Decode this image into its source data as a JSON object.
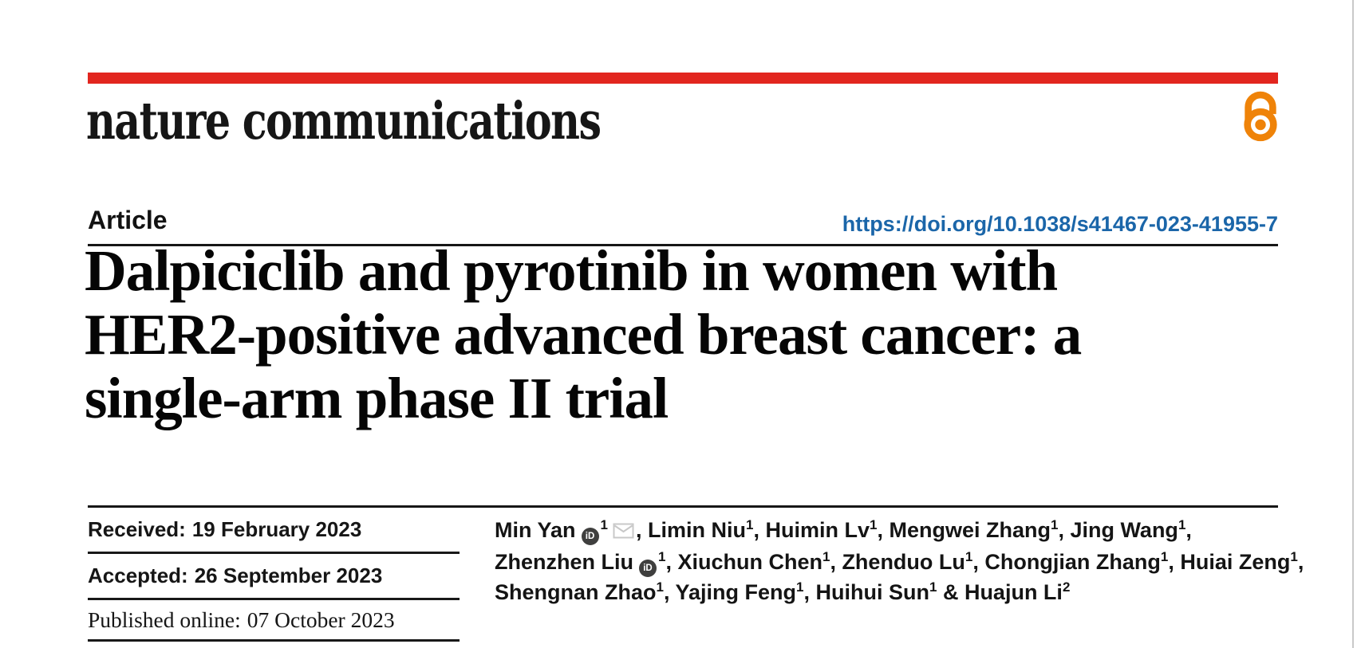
{
  "page": {
    "edge_color": "#c9c9c9"
  },
  "masthead": {
    "journal_name": "nature communications",
    "brand_bar_color": "#e2261f",
    "open_access_icon_color": "#ef8309"
  },
  "article_header": {
    "kicker": "Article",
    "doi_link": "https://doi.org/10.1038/s41467-023-41955-7",
    "doi_color": "#1b66a9",
    "title_lines": [
      "Dalpiciclib and pyrotinib in women with",
      "HER2-positive advanced breast cancer: a",
      "single-arm phase II trial"
    ]
  },
  "timeline": {
    "rows": [
      {
        "label": "Received:",
        "value": "19 February 2023",
        "serif": false
      },
      {
        "label": "Accepted:",
        "value": "26 September 2023",
        "serif": false
      },
      {
        "label": "Published online:",
        "value": "07 October 2023",
        "serif": true
      }
    ]
  },
  "authors": {
    "orcid_glyph": "iD",
    "lines": [
      [
        {
          "t": "text",
          "v": "Min Yan"
        },
        {
          "t": "orcid"
        },
        {
          "t": "sup",
          "v": "1"
        },
        {
          "t": "mail"
        },
        {
          "t": "text",
          "v": ", Limin Niu"
        },
        {
          "t": "sup",
          "v": "1"
        },
        {
          "t": "text",
          "v": ", Huimin Lv"
        },
        {
          "t": "sup",
          "v": "1"
        },
        {
          "t": "text",
          "v": ", Mengwei Zhang"
        },
        {
          "t": "sup",
          "v": "1"
        },
        {
          "t": "text",
          "v": ", Jing Wang"
        },
        {
          "t": "sup",
          "v": "1"
        },
        {
          "t": "text",
          "v": ","
        }
      ],
      [
        {
          "t": "text",
          "v": "Zhenzhen Liu"
        },
        {
          "t": "orcid"
        },
        {
          "t": "sup",
          "v": "1"
        },
        {
          "t": "text",
          "v": ", Xiuchun Chen"
        },
        {
          "t": "sup",
          "v": "1"
        },
        {
          "t": "text",
          "v": ", Zhenduo Lu"
        },
        {
          "t": "sup",
          "v": "1"
        },
        {
          "t": "text",
          "v": ", Chongjian Zhang"
        },
        {
          "t": "sup",
          "v": "1"
        },
        {
          "t": "text",
          "v": ", Huiai Zeng"
        },
        {
          "t": "sup",
          "v": "1"
        },
        {
          "t": "text",
          "v": ","
        }
      ],
      [
        {
          "t": "text",
          "v": "Shengnan Zhao"
        },
        {
          "t": "sup",
          "v": "1"
        },
        {
          "t": "text",
          "v": ", Yajing Feng"
        },
        {
          "t": "sup",
          "v": "1"
        },
        {
          "t": "text",
          "v": ", Huihui Sun"
        },
        {
          "t": "sup",
          "v": "1"
        },
        {
          "t": "text",
          "v": " & Huajun Li"
        },
        {
          "t": "sup",
          "v": "2"
        }
      ]
    ]
  }
}
